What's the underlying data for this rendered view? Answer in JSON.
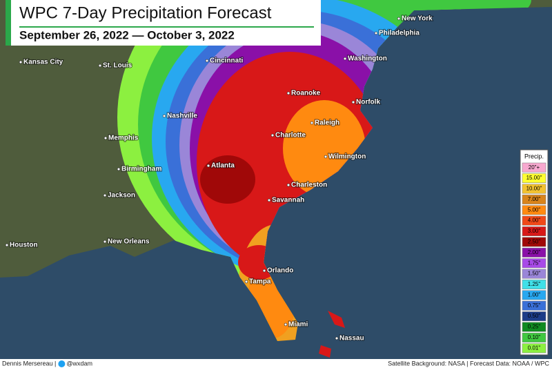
{
  "header": {
    "title": "WPC 7-Day Precipitation Forecast",
    "subtitle": "September 26, 2022 — October 3, 2022"
  },
  "cities": [
    "Kansas City",
    "St. Louis",
    "Cincinnati",
    "Washington",
    "New York",
    "Philadelphia",
    "Roanoke",
    "Norfolk",
    "Nashville",
    "Raleigh",
    "Charlotte",
    "Memphis",
    "Wilmington",
    "Atlanta",
    "Birmingham",
    "Charleston",
    "Jackson",
    "Savannah",
    "Houston",
    "New Orleans",
    "Orlando",
    "Tampa",
    "Miami",
    "Nassau"
  ],
  "legend": {
    "title": "Precip.",
    "items": [
      {
        "label": "20\"+",
        "color": "#f7a8cf"
      },
      {
        "label": "15.00\"",
        "color": "#ffff30"
      },
      {
        "label": "10.00\"",
        "color": "#f2c230"
      },
      {
        "label": "7.00\"",
        "color": "#d9841a"
      },
      {
        "label": "5.00\"",
        "color": "#ff8a10"
      },
      {
        "label": "4.00\"",
        "color": "#f04818"
      },
      {
        "label": "3.00\"",
        "color": "#d81818"
      },
      {
        "label": "2.50\"",
        "color": "#a00808"
      },
      {
        "label": "2.00\"",
        "color": "#8a10a8"
      },
      {
        "label": "1.75\"",
        "color": "#a84ae8"
      },
      {
        "label": "1.50\"",
        "color": "#9a86d8"
      },
      {
        "label": "1.25\"",
        "color": "#40e0e8"
      },
      {
        "label": "1.00\"",
        "color": "#28a8f0"
      },
      {
        "label": "0.75\"",
        "color": "#3a70d8"
      },
      {
        "label": "0.50\"",
        "color": "#1c3c88"
      },
      {
        "label": "0.25\"",
        "color": "#108a20"
      },
      {
        "label": "0.10\"",
        "color": "#40c840"
      },
      {
        "label": "0.01\"",
        "color": "#8cf040"
      }
    ]
  },
  "footer": {
    "author": "Dennis Mersereau |",
    "handle": "@wxdam",
    "credits": "Satellite Background: NASA | Forecast Data: NOAA / WPC"
  }
}
